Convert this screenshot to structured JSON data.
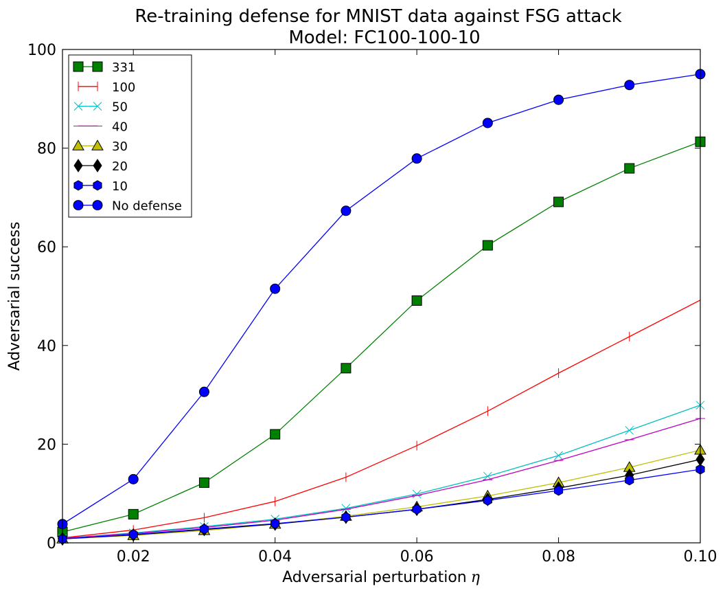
{
  "chart_data": {
    "type": "line",
    "title": "Re-training defense for MNIST data against FSG attack",
    "subtitle": "Model: FC100-100-10",
    "xlabel": "Adversarial perturbation",
    "xlabel_symbol": "η",
    "ylabel": "Adversarial success",
    "xlim": [
      0.01,
      0.1
    ],
    "ylim": [
      0,
      100
    ],
    "x_ticks": [
      "0.02",
      "0.04",
      "0.06",
      "0.08",
      "0.10"
    ],
    "y_ticks": [
      "0",
      "20",
      "40",
      "60",
      "80",
      "100"
    ],
    "legend_placement": "top-left",
    "x": [
      0.01,
      0.02,
      0.03,
      0.04,
      0.05,
      0.06,
      0.07,
      0.08,
      0.09,
      0.1
    ],
    "series": [
      {
        "name": "331",
        "color": "#008000",
        "marker": "square",
        "values": [
          2.2,
          5.8,
          12.2,
          22.0,
          35.4,
          49.1,
          60.3,
          69.1,
          75.9,
          81.3
        ]
      },
      {
        "name": "100",
        "color": "#ff0000",
        "marker": "vline",
        "values": [
          1.0,
          2.6,
          5.1,
          8.4,
          13.3,
          19.7,
          26.7,
          34.4,
          41.8,
          49.2
        ]
      },
      {
        "name": "50",
        "color": "#00bfbf",
        "marker": "x",
        "values": [
          0.9,
          2.0,
          3.3,
          4.8,
          7.0,
          9.9,
          13.5,
          17.7,
          22.8,
          27.9
        ]
      },
      {
        "name": "40",
        "color": "#bf00bf",
        "marker": "hline",
        "values": [
          0.9,
          1.9,
          3.1,
          4.6,
          6.8,
          9.6,
          12.8,
          16.7,
          20.9,
          25.2
        ]
      },
      {
        "name": "30",
        "color": "#bfbf00",
        "marker": "triangle",
        "values": [
          0.8,
          1.5,
          2.5,
          3.8,
          5.4,
          7.3,
          9.5,
          12.2,
          15.3,
          18.8
        ]
      },
      {
        "name": "20",
        "color": "#000000",
        "marker": "diamond",
        "values": [
          0.8,
          1.6,
          2.7,
          3.8,
          5.2,
          6.8,
          8.8,
          11.1,
          13.7,
          16.9
        ]
      },
      {
        "name": "10",
        "color": "#0000ff",
        "marker": "hexagon",
        "values": [
          0.8,
          1.7,
          2.8,
          3.9,
          5.2,
          6.8,
          8.6,
          10.6,
          12.7,
          14.9
        ]
      },
      {
        "name": "No defense",
        "color": "#0000ff",
        "marker": "circle",
        "values": [
          3.8,
          12.9,
          30.6,
          51.5,
          67.3,
          77.9,
          85.1,
          89.8,
          92.8,
          95.0
        ]
      }
    ]
  }
}
